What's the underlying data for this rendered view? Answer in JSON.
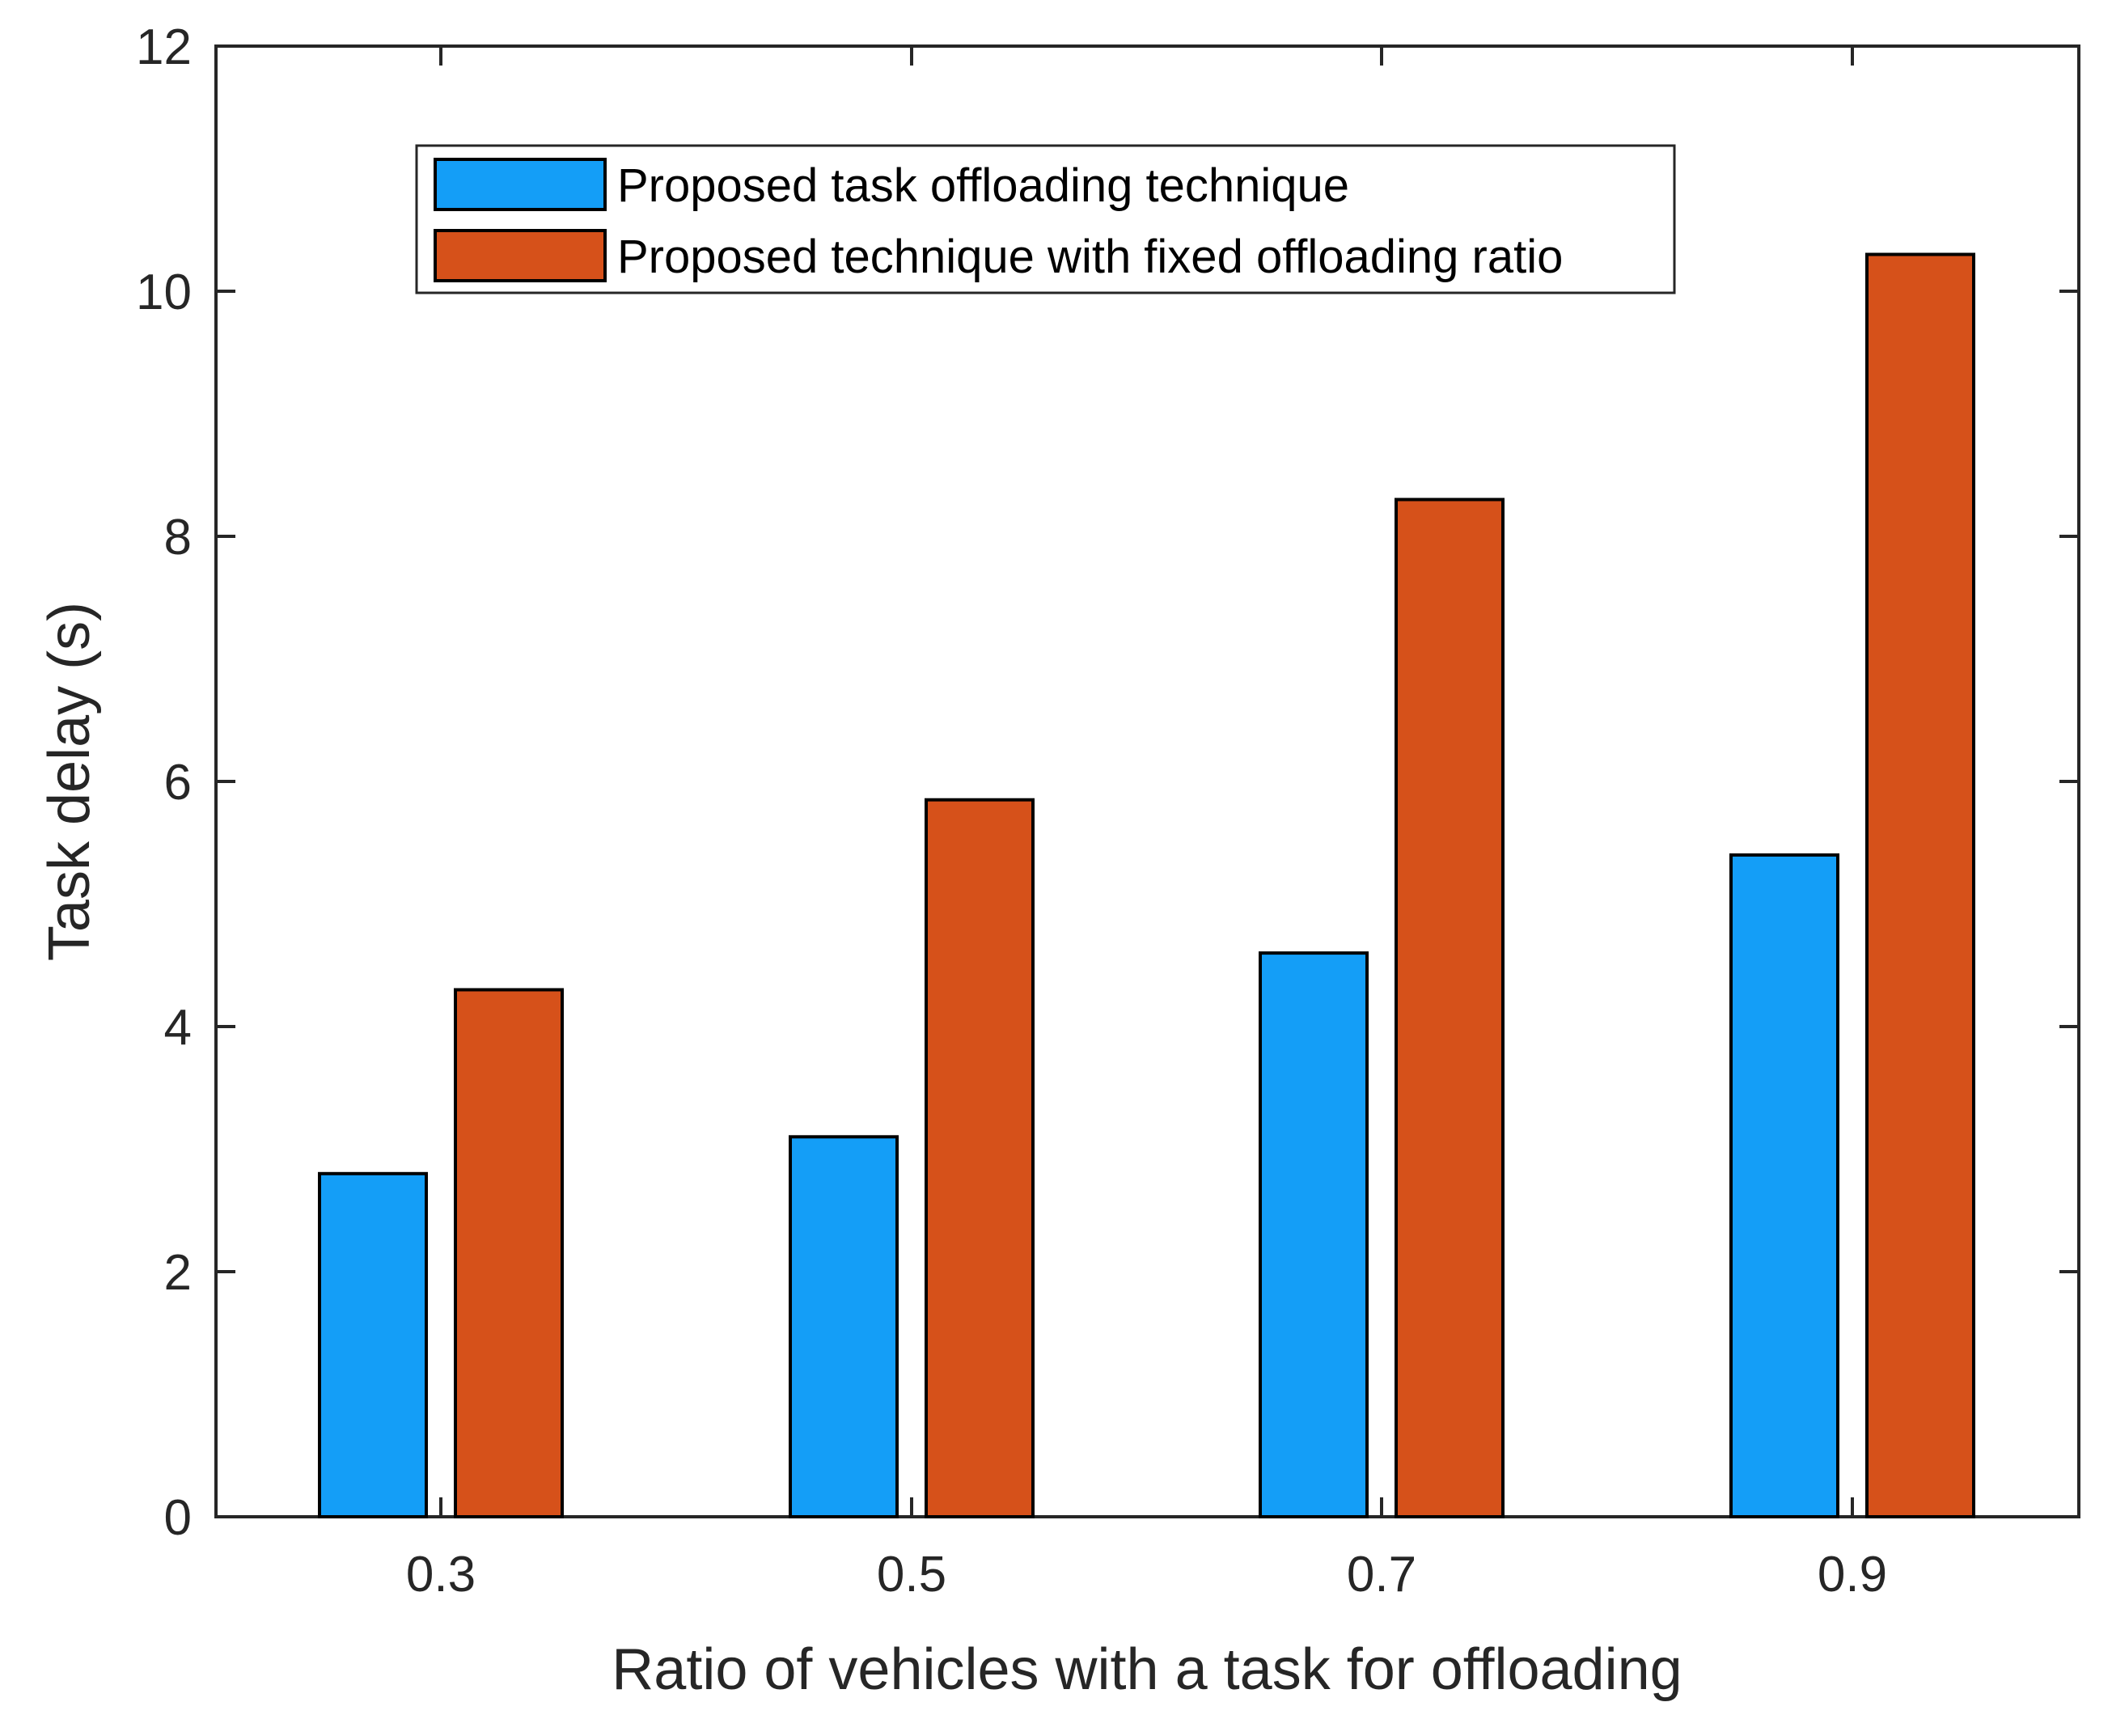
{
  "chart_data": {
    "type": "bar",
    "title": "",
    "xlabel": "Ratio of vehicles with a task for offloading",
    "ylabel": "Task delay (s)",
    "categories": [
      "0.3",
      "0.5",
      "0.7",
      "0.9"
    ],
    "ylim": [
      0,
      12
    ],
    "yticks": [
      "0",
      "2",
      "4",
      "6",
      "8",
      "10",
      "12"
    ],
    "grid": false,
    "legend_position": "top-center",
    "series": [
      {
        "name": "Proposed task offloading technique",
        "color": "#149EF7",
        "values": [
          2.8,
          3.1,
          4.6,
          5.4
        ]
      },
      {
        "name": "Proposed technique with fixed offloading ratio",
        "color": "#D6511A",
        "values": [
          4.3,
          5.85,
          8.3,
          10.3
        ]
      }
    ]
  }
}
